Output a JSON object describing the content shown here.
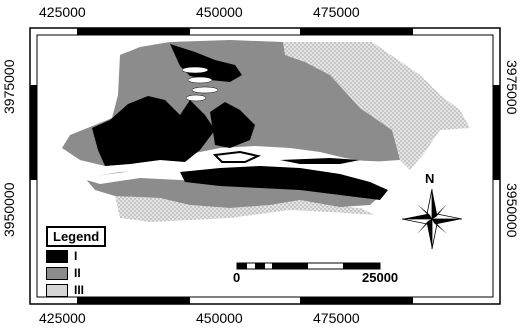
{
  "axes": {
    "x_ticks": [
      "425000",
      "450000",
      "475000"
    ],
    "y_ticks": [
      "3975000",
      "3950000"
    ]
  },
  "legend": {
    "title": "Legend",
    "items": [
      {
        "label": "I",
        "color": "#000000"
      },
      {
        "label": "II",
        "color": "#8c8c8c"
      },
      {
        "label": "III",
        "color": "#d6d6d6"
      }
    ]
  },
  "scale_bar": {
    "start": "0",
    "end": "25000"
  },
  "north_arrow": {
    "label": "N"
  },
  "colors": {
    "zone_I": "#000000",
    "zone_II": "#8c8c8c",
    "zone_III": "#d6d6d6",
    "frame": "#000000",
    "background": "#ffffff"
  }
}
